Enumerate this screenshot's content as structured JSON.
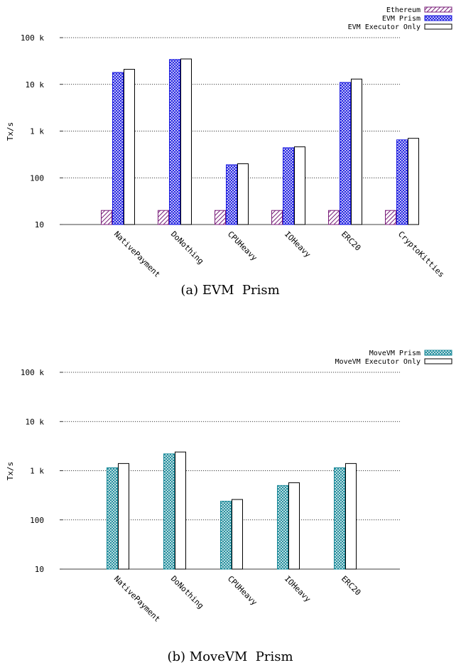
{
  "chart_data": [
    {
      "type": "bar",
      "caption": "(a) EVM  Prism",
      "ylabel": "Tx/s",
      "yscale": "log",
      "ylim": [
        10,
        100000
      ],
      "yticks": [
        "10",
        "100",
        "1 k",
        "10 k",
        "100 k"
      ],
      "grid": true,
      "legend_position": "top-right",
      "categories": [
        "NativePayment",
        "DoNothing",
        "CPUHeavy",
        "IOHeavy",
        "ERC20",
        "CryptoKitties"
      ],
      "series": [
        {
          "name": "Ethereum",
          "pattern": "hatch",
          "color": "#7a1f7a",
          "values": [
            20,
            20,
            20,
            20,
            20,
            20
          ]
        },
        {
          "name": "EVM Prism",
          "pattern": "crosshatch",
          "color": "#1c1ce0",
          "values": [
            18000,
            34000,
            190,
            440,
            11000,
            650
          ]
        },
        {
          "name": "EVM Executor Only",
          "pattern": "solid",
          "color": "#000000",
          "values": [
            21000,
            35000,
            200,
            460,
            13000,
            700
          ]
        }
      ]
    },
    {
      "type": "bar",
      "caption": "(b) MoveVM  Prism",
      "ylabel": "Tx/s",
      "yscale": "log",
      "ylim": [
        10,
        100000
      ],
      "yticks": [
        "10",
        "100",
        "1 k",
        "10 k",
        "100 k"
      ],
      "grid": true,
      "legend_position": "top-right",
      "categories": [
        "NativePayment",
        "DoNothing",
        "CPUHeavy",
        "IOHeavy",
        "ERC20"
      ],
      "series": [
        {
          "name": "MoveVM Prism",
          "pattern": "crosshatch",
          "color": "#1a8a9a",
          "values": [
            1150,
            2200,
            240,
            500,
            1150
          ]
        },
        {
          "name": "MoveVM Executor Only",
          "pattern": "solid",
          "color": "#000000",
          "values": [
            1400,
            2400,
            260,
            570,
            1400
          ]
        }
      ]
    }
  ]
}
